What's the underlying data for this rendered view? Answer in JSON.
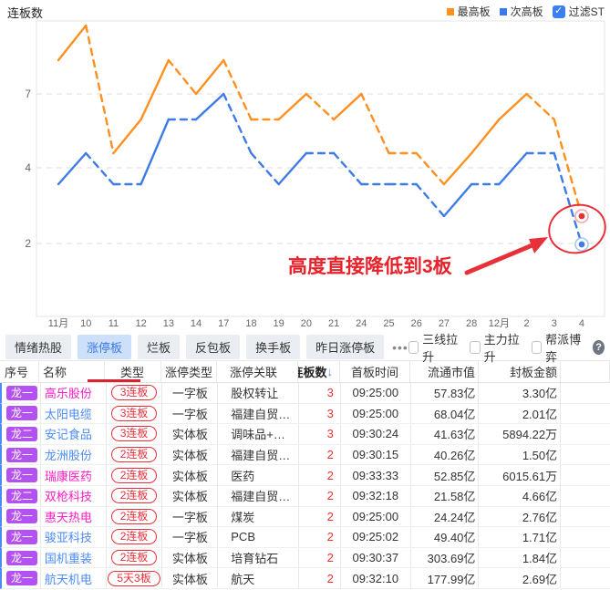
{
  "header": {
    "title": "连板数",
    "legend": [
      {
        "label": "最高板",
        "color": "#ff8f1f"
      },
      {
        "label": "次高板",
        "color": "#3d7be8"
      }
    ],
    "filter_st": {
      "label": "过滤ST",
      "checked": true,
      "check_glyph": "✓"
    }
  },
  "chart_data": {
    "type": "line",
    "categories": [
      "11月",
      "10",
      "11",
      "12",
      "13",
      "14",
      "17",
      "18",
      "19",
      "20",
      "21",
      "24",
      "25",
      "26",
      "27",
      "28",
      "12月",
      "2",
      "3",
      "4"
    ],
    "series": [
      {
        "name": "最高板",
        "color": "#ff8f1f",
        "values": [
          8,
          10,
          5,
          6,
          8,
          7,
          8,
          6,
          6,
          7,
          6,
          7,
          5,
          5,
          4,
          5,
          6,
          7,
          6,
          3
        ]
      },
      {
        "name": "次高板",
        "color": "#3d7be8",
        "values": [
          4,
          5,
          4,
          4,
          6,
          6,
          7,
          5,
          4,
          5,
          5,
          4,
          4,
          4,
          3,
          4,
          4,
          5,
          5,
          2
        ]
      }
    ],
    "yticks": [
      7,
      4,
      2
    ],
    "ylim": [
      2,
      10
    ],
    "grid": true,
    "legend_position": "top-right",
    "line_style_rule": "rising segments solid, falling or flat segments dashed",
    "end_markers": [
      {
        "series": "最高板",
        "value": 3,
        "dot_color": "#e03333",
        "ring_color": "#f2a8a8"
      },
      {
        "series": "次高板",
        "value": 2,
        "dot_color": "#3d7ee8",
        "ring_color": "#a6c6f5"
      }
    ],
    "annotation": {
      "text": "高度直接降低到3板",
      "color": "#e8212b",
      "highlight": "red arrow pointing to red ellipse around last points"
    }
  },
  "tabs": {
    "items": [
      {
        "label": "情绪热股",
        "active": false
      },
      {
        "label": "涨停板",
        "active": true
      },
      {
        "label": "烂板",
        "active": false
      },
      {
        "label": "反包板",
        "active": false
      },
      {
        "label": "换手板",
        "active": false
      },
      {
        "label": "昨日涨停板",
        "active": false
      }
    ],
    "more": "•••",
    "checkboxes": [
      {
        "label": "三线拉升",
        "checked": false
      },
      {
        "label": "主力拉升",
        "checked": false
      },
      {
        "label": "帮派博弈",
        "checked": false
      }
    ],
    "help": "?"
  },
  "table": {
    "columns": [
      "序号",
      "名称",
      "类型",
      "涨停类型",
      "涨停关联",
      "连板数",
      "首板时间",
      "流通市值",
      "封板金额"
    ],
    "sort_column": "连板数",
    "sort_arrow": "↓",
    "rows": [
      {
        "rank": "龙一",
        "name": "高乐股份",
        "name_color": "#ff1dc5",
        "board": "3连板",
        "type": "一字板",
        "relation": "股权转让",
        "count": "3",
        "time": "09:25:00",
        "cap": "57.83亿",
        "amount": "3.30亿"
      },
      {
        "rank": "龙一",
        "name": "太阳电缆",
        "name_color": "#4c8bf5",
        "board": "3连板",
        "type": "一字板",
        "relation": "福建自贸…",
        "count": "3",
        "time": "09:25:00",
        "cap": "68.04亿",
        "amount": "2.01亿"
      },
      {
        "rank": "龙二",
        "name": "安记食品",
        "name_color": "#4c8bf5",
        "board": "3连板",
        "type": "实体板",
        "relation": "调味品+…",
        "count": "3",
        "time": "09:30:24",
        "cap": "41.63亿",
        "amount": "5894.22万"
      },
      {
        "rank": "龙一",
        "name": "龙洲股份",
        "name_color": "#4c8bf5",
        "board": "2连板",
        "type": "实体板",
        "relation": "福建自贸…",
        "count": "2",
        "time": "09:30:15",
        "cap": "40.26亿",
        "amount": "1.50亿"
      },
      {
        "rank": "龙一",
        "name": "瑞康医药",
        "name_color": "#ff1dc5",
        "board": "2连板",
        "type": "实体板",
        "relation": "医药",
        "count": "2",
        "time": "09:33:33",
        "cap": "52.85亿",
        "amount": "6015.61万"
      },
      {
        "rank": "龙二",
        "name": "双枪科技",
        "name_color": "#ff1dc5",
        "board": "2连板",
        "type": "实体板",
        "relation": "福建自贸…",
        "count": "2",
        "time": "09:32:18",
        "cap": "21.58亿",
        "amount": "4.66亿"
      },
      {
        "rank": "龙一",
        "name": "惠天热电",
        "name_color": "#ff1dc5",
        "board": "2连板",
        "type": "一字板",
        "relation": "煤炭",
        "count": "2",
        "time": "09:25:00",
        "cap": "24.24亿",
        "amount": "2.76亿"
      },
      {
        "rank": "龙一",
        "name": "骏亚科技",
        "name_color": "#4c8bf5",
        "board": "2连板",
        "type": "一字板",
        "relation": "PCB",
        "count": "2",
        "time": "09:25:02",
        "cap": "49.40亿",
        "amount": "1.71亿"
      },
      {
        "rank": "龙一",
        "name": "国机重装",
        "name_color": "#4c8bf5",
        "board": "2连板",
        "type": "实体板",
        "relation": "培育钻石",
        "count": "2",
        "time": "09:30:37",
        "cap": "303.69亿",
        "amount": "1.84亿"
      },
      {
        "rank": "龙一",
        "name": "航天机电",
        "name_color": "#4c8bf5",
        "board": "5天3板",
        "type": "实体板",
        "relation": "航天",
        "count": "2",
        "time": "09:32:10",
        "cap": "177.99亿",
        "amount": "2.69亿"
      }
    ]
  }
}
